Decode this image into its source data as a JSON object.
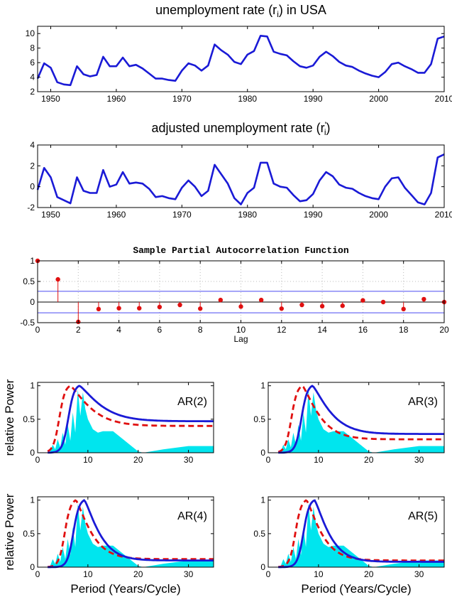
{
  "colors": {
    "line": "#1a1ad6",
    "fill": "#00e5ee",
    "dash": "#e01010",
    "stem": "#e01010",
    "conf": "#4a4af0"
  },
  "chart_data": [
    {
      "type": "line",
      "title": "unemployment rate (r_i) in USA",
      "title_main": "unemployment rate (r",
      "title_sub": "i",
      "title_tail": ") in USA",
      "xlim": [
        1948,
        2010
      ],
      "ylim": [
        2,
        11
      ],
      "xticks": [
        1950,
        1960,
        1970,
        1980,
        1990,
        2000,
        2010
      ],
      "yticks": [
        2,
        4,
        6,
        8,
        10
      ],
      "series": [
        {
          "x": [
            1948,
            1949,
            1950,
            1951,
            1952,
            1953,
            1954,
            1955,
            1956,
            1957,
            1958,
            1959,
            1960,
            1961,
            1962,
            1963,
            1964,
            1965,
            1966,
            1967,
            1968,
            1969,
            1970,
            1971,
            1972,
            1973,
            1974,
            1975,
            1976,
            1977,
            1978,
            1979,
            1980,
            1981,
            1982,
            1983,
            1984,
            1985,
            1986,
            1987,
            1988,
            1989,
            1990,
            1991,
            1992,
            1993,
            1994,
            1995,
            1996,
            1997,
            1998,
            1999,
            2000,
            2001,
            2002,
            2003,
            2004,
            2005,
            2006,
            2007,
            2008,
            2009,
            2010
          ],
          "values": [
            3.8,
            5.9,
            5.3,
            3.3,
            3.0,
            2.9,
            5.5,
            4.4,
            4.1,
            4.3,
            6.8,
            5.5,
            5.5,
            6.7,
            5.5,
            5.7,
            5.2,
            4.5,
            3.8,
            3.8,
            3.6,
            3.5,
            4.9,
            5.9,
            5.6,
            4.9,
            5.6,
            8.5,
            7.7,
            7.1,
            6.1,
            5.8,
            7.1,
            7.6,
            9.7,
            9.6,
            7.5,
            7.2,
            7.0,
            6.2,
            5.5,
            5.3,
            5.6,
            6.8,
            7.5,
            6.9,
            6.1,
            5.6,
            5.4,
            4.9,
            4.5,
            4.2,
            4.0,
            4.7,
            5.8,
            6.0,
            5.5,
            5.1,
            4.6,
            4.6,
            5.8,
            9.3,
            9.6
          ]
        }
      ]
    },
    {
      "type": "line",
      "title": "adjusted unemployment rate (r'_i)",
      "title_main": "adjusted unemployment rate (r",
      "title_sup": "'",
      "title_sub": "i",
      "title_tail": ")",
      "xlim": [
        1948,
        2010
      ],
      "ylim": [
        -2,
        4
      ],
      "xticks": [
        1950,
        1960,
        1970,
        1980,
        1990,
        2000,
        2010
      ],
      "yticks": [
        -2,
        0,
        2,
        4
      ],
      "series": [
        {
          "x": [
            1948,
            1949,
            1950,
            1951,
            1952,
            1953,
            1954,
            1955,
            1956,
            1957,
            1958,
            1959,
            1960,
            1961,
            1962,
            1963,
            1964,
            1965,
            1966,
            1967,
            1968,
            1969,
            1970,
            1971,
            1972,
            1973,
            1974,
            1975,
            1976,
            1977,
            1978,
            1979,
            1980,
            1981,
            1982,
            1983,
            1984,
            1985,
            1986,
            1987,
            1988,
            1989,
            1990,
            1991,
            1992,
            1993,
            1994,
            1995,
            1996,
            1997,
            1998,
            1999,
            2000,
            2001,
            2002,
            2003,
            2004,
            2005,
            2006,
            2007,
            2008,
            2009,
            2010
          ],
          "values": [
            -0.3,
            1.8,
            0.9,
            -1.0,
            -1.3,
            -1.6,
            0.9,
            -0.4,
            -0.6,
            -0.6,
            1.6,
            0.0,
            0.2,
            1.4,
            0.3,
            0.4,
            0.3,
            -0.2,
            -1.0,
            -0.9,
            -1.1,
            -1.2,
            -0.1,
            0.6,
            0.0,
            -0.9,
            -0.4,
            2.1,
            1.2,
            0.3,
            -1.1,
            -1.7,
            -0.6,
            -0.1,
            2.3,
            2.3,
            0.3,
            0.0,
            -0.1,
            -0.8,
            -1.4,
            -1.3,
            -0.7,
            0.6,
            1.4,
            1.0,
            0.2,
            -0.1,
            -0.2,
            -0.6,
            -0.9,
            -1.1,
            -1.2,
            0.0,
            0.8,
            0.9,
            -0.1,
            -0.8,
            -1.5,
            -1.7,
            -0.6,
            2.8,
            3.1
          ]
        }
      ]
    },
    {
      "type": "stem",
      "title": "Sample Partial Autocorrelation Function",
      "xlabel": "Lag",
      "xlim": [
        0,
        20
      ],
      "ylim": [
        -0.5,
        1
      ],
      "xticks": [
        0,
        2,
        4,
        6,
        8,
        10,
        12,
        14,
        16,
        18,
        20
      ],
      "yticks": [
        -0.5,
        0,
        0.5,
        1
      ],
      "conf_bound": 0.26,
      "lags": [
        0,
        1,
        2,
        3,
        4,
        5,
        6,
        7,
        8,
        9,
        10,
        11,
        12,
        13,
        14,
        15,
        16,
        17,
        18,
        19,
        20
      ],
      "values": [
        1.0,
        0.55,
        -0.48,
        -0.17,
        -0.15,
        -0.15,
        -0.12,
        -0.07,
        -0.16,
        0.05,
        -0.11,
        0.05,
        -0.16,
        -0.07,
        -0.1,
        -0.09,
        0.04,
        0.0,
        -0.17,
        0.07,
        0.0
      ]
    },
    {
      "type": "area-line",
      "label": "AR(2)",
      "ylabel": "relative Power",
      "xlabel": "",
      "xlim": [
        0,
        35
      ],
      "ylim": [
        0,
        1.05
      ],
      "xticks": [
        0,
        10,
        20,
        30
      ],
      "yticks": [
        0,
        0.5,
        1
      ],
      "peak_solid": 8.3,
      "peak_dash": 6.5,
      "tail_solid": 0.47,
      "tail_dash": 0.4
    },
    {
      "type": "area-line",
      "label": "AR(3)",
      "ylabel": "",
      "xlabel": "",
      "xlim": [
        0,
        35
      ],
      "ylim": [
        0,
        1.05
      ],
      "xticks": [
        0,
        10,
        20,
        30
      ],
      "yticks": [
        0,
        0.5,
        1
      ],
      "peak_solid": 8.8,
      "peak_dash": 6.8,
      "tail_solid": 0.28,
      "tail_dash": 0.2
    },
    {
      "type": "area-line",
      "label": "AR(4)",
      "ylabel": "relative Power",
      "xlabel": "Period (Years/Cycle)",
      "xlim": [
        0,
        35
      ],
      "ylim": [
        0,
        1.05
      ],
      "xticks": [
        0,
        10,
        20,
        30
      ],
      "yticks": [
        0,
        0.5,
        1
      ],
      "peak_solid": 9.3,
      "peak_dash": 7.6,
      "tail_solid": 0.1,
      "tail_dash": 0.12
    },
    {
      "type": "area-line",
      "label": "AR(5)",
      "ylabel": "",
      "xlabel": "Period (Years/Cycle)",
      "xlim": [
        0,
        35
      ],
      "ylim": [
        0,
        1.05
      ],
      "xticks": [
        0,
        10,
        20,
        30
      ],
      "yticks": [
        0,
        0.5,
        1
      ],
      "peak_solid": 9.2,
      "peak_dash": 7.6,
      "tail_solid": 0.08,
      "tail_dash": 0.1
    }
  ],
  "spectrum_fill": {
    "x": [
      0,
      2,
      2.5,
      3,
      3.5,
      4,
      4.5,
      5,
      5.5,
      6,
      6.5,
      7,
      7.5,
      8,
      8.5,
      9,
      9.5,
      10,
      11,
      12,
      13,
      15,
      17,
      19,
      20,
      21,
      25,
      30,
      35
    ],
    "values": [
      0,
      0,
      0.02,
      0.12,
      0.05,
      0.2,
      0.08,
      0.3,
      0.12,
      0.42,
      0.18,
      0.6,
      0.3,
      0.95,
      0.55,
      0.9,
      0.65,
      0.5,
      0.35,
      0.3,
      0.32,
      0.32,
      0.2,
      0.08,
      0.02,
      0.0,
      0.05,
      0.1,
      0.1
    ]
  }
}
